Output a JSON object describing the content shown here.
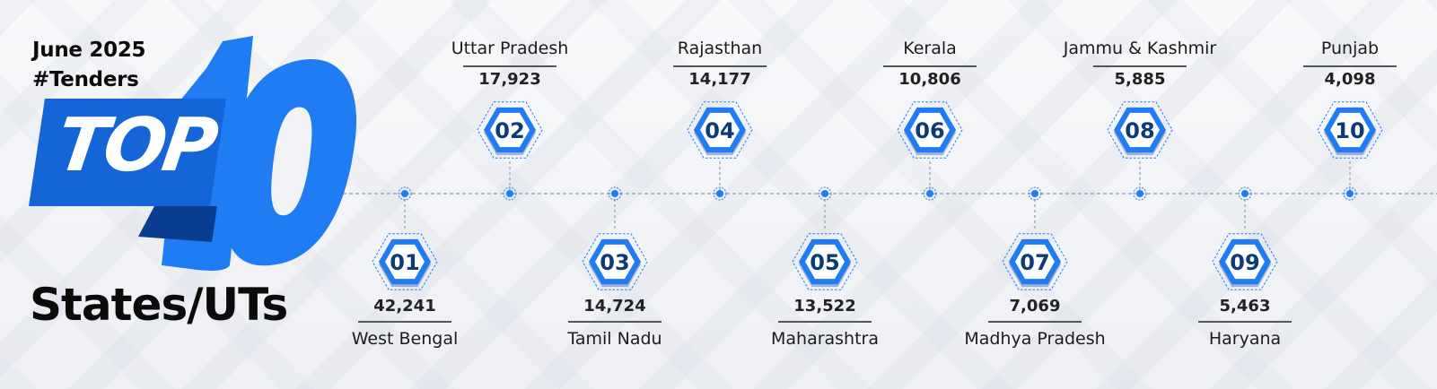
{
  "header": {
    "period": "June 2025",
    "hashtag": "#Tenders",
    "top_word": "TOP",
    "top_number": "10",
    "subtitle": "States/UTs"
  },
  "colors": {
    "accent": "#1f7cf2",
    "dark_blue": "#0a3d8f",
    "badge_text": "#0d3b78",
    "text": "#0b0b0b"
  },
  "chart_data": {
    "type": "table",
    "title": "",
    "categories": [
      "West Bengal",
      "Uttar Pradesh",
      "Tamil Nadu",
      "Rajasthan",
      "Maharashtra",
      "Kerala",
      "Madhya Pradesh",
      "Jammu & Kashmir",
      "Haryana",
      "Punjab"
    ],
    "ranks": [
      "01",
      "02",
      "03",
      "04",
      "05",
      "06",
      "07",
      "08",
      "09",
      "10"
    ],
    "values": [
      42241,
      17923,
      14724,
      14177,
      13522,
      10806,
      7069,
      5885,
      5463,
      4098
    ],
    "value_labels": [
      "42,241",
      "17,923",
      "14,724",
      "14,177",
      "13,522",
      "10,806",
      "7,069",
      "5,885",
      "5,463",
      "4,098"
    ]
  }
}
